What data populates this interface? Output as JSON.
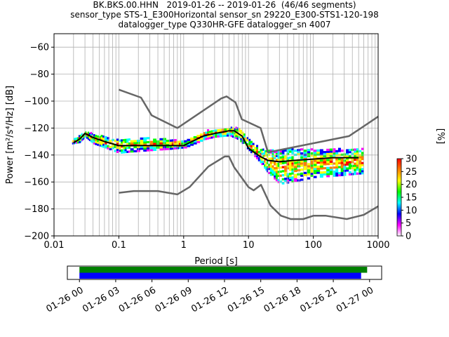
{
  "title_lines": [
    "BK.BKS.00.HHN   2019-01-26 -- 2019-01-26  (46/46 segments)",
    "sensor_type STS-1_E300Horizontal sensor_sn 29220_E300-STS1-120-198",
    "datalogger_type Q330HR-GFE datalogger_sn 4007"
  ],
  "chart_data": [
    {
      "type": "heatmap",
      "xlabel": "Period [s]",
      "ylabel": "Power [m²/s⁴/Hz] [dB]",
      "x_scale": "log",
      "xlim": [
        0.01,
        1000
      ],
      "ylim": [
        -200,
        -50
      ],
      "x_ticks": [
        {
          "value": 0.01,
          "label": "0.01"
        },
        {
          "value": 0.1,
          "label": "0.1"
        },
        {
          "value": 1,
          "label": "1"
        },
        {
          "value": 10,
          "label": "10"
        },
        {
          "value": 100,
          "label": "100"
        },
        {
          "value": 1000,
          "label": "1000"
        }
      ],
      "y_ticks": [
        -60,
        -80,
        -100,
        -120,
        -140,
        -160,
        -180,
        -200
      ],
      "grid": true,
      "colorbar": {
        "label": "[%]",
        "range": [
          0,
          30
        ],
        "ticks": [
          0,
          5,
          10,
          15,
          20,
          25,
          30
        ],
        "colors": [
          "#ffffff",
          "#ff00ff",
          "#0000ff",
          "#00ffff",
          "#00ff00",
          "#ffff00",
          "#ff8000",
          "#ff0000"
        ]
      },
      "series": [
        {
          "role": "new-high-noise-model",
          "color": "#666666",
          "x": [
            0.1,
            0.22,
            0.32,
            0.8,
            3.8,
            4.6,
            6.3,
            7.9,
            15.4,
            20,
            354.8,
            1000
          ],
          "y": [
            -91.5,
            -97.4,
            -110.5,
            -120,
            -98,
            -96.5,
            -101,
            -113.5,
            -120,
            -138,
            -126,
            -111.5
          ]
        },
        {
          "role": "new-low-noise-model",
          "color": "#666666",
          "x": [
            0.1,
            0.17,
            0.4,
            0.8,
            1.24,
            2.4,
            4.3,
            5,
            6,
            10,
            12,
            15.6,
            21.9,
            31.6,
            45,
            70,
            101,
            154,
            328,
            600,
            1000
          ],
          "y": [
            -168,
            -166.7,
            -166.7,
            -169.2,
            -163.7,
            -148.6,
            -141.1,
            -141.1,
            -149,
            -163.8,
            -166.2,
            -162.1,
            -177.5,
            -185,
            -187.5,
            -187.5,
            -185,
            -185,
            -187.5,
            -184.4,
            -178
          ]
        },
        {
          "role": "mode",
          "color": "#000000",
          "x": [
            0.02,
            0.025,
            0.03,
            0.04,
            0.06,
            0.1,
            0.15,
            0.3,
            0.6,
            1,
            2,
            3,
            4,
            5,
            6,
            8,
            10,
            15,
            20,
            30,
            50,
            100,
            200,
            500
          ],
          "y": [
            -131,
            -128,
            -124,
            -127,
            -130,
            -133,
            -133,
            -133,
            -133,
            -133,
            -126,
            -124,
            -123,
            -122,
            -122,
            -126,
            -135,
            -141,
            -144,
            -145,
            -144,
            -143,
            -142,
            -142
          ]
        }
      ],
      "density": [
        {
          "x": 0.019,
          "y0": -132,
          "y1": -129
        },
        {
          "x": 0.025,
          "y0": -131,
          "y1": -126
        },
        {
          "x": 0.03,
          "y0": -127,
          "y1": -123
        },
        {
          "x": 0.04,
          "y0": -132,
          "y1": -125
        },
        {
          "x": 0.06,
          "y0": -135,
          "y1": -127
        },
        {
          "x": 0.1,
          "y0": -139,
          "y1": -129
        },
        {
          "x": 0.15,
          "y0": -138,
          "y1": -128
        },
        {
          "x": 0.3,
          "y0": -137,
          "y1": -128
        },
        {
          "x": 0.6,
          "y0": -136,
          "y1": -129
        },
        {
          "x": 1,
          "y0": -135,
          "y1": -130
        },
        {
          "x": 2,
          "y0": -129,
          "y1": -123
        },
        {
          "x": 3,
          "y0": -127,
          "y1": -121
        },
        {
          "x": 5,
          "y0": -126,
          "y1": -120
        },
        {
          "x": 7,
          "y0": -129,
          "y1": -120
        },
        {
          "x": 10,
          "y0": -137,
          "y1": -129
        },
        {
          "x": 15,
          "y0": -146,
          "y1": -136
        },
        {
          "x": 20,
          "y0": -154,
          "y1": -137
        },
        {
          "x": 30,
          "y0": -162,
          "y1": -137
        },
        {
          "x": 50,
          "y0": -160,
          "y1": -136
        },
        {
          "x": 100,
          "y0": -157,
          "y1": -136
        },
        {
          "x": 200,
          "y0": -156,
          "y1": -136
        },
        {
          "x": 350,
          "y0": -155,
          "y1": -136
        },
        {
          "x": 600,
          "y0": -154,
          "y1": -136
        }
      ]
    },
    {
      "type": "bar",
      "role": "data-coverage",
      "x_ticks": [
        "01-26 00",
        "01-26 03",
        "01-26 06",
        "01-26 09",
        "01-26 12",
        "01-26 15",
        "01-26 18",
        "01-26 21",
        "01-27 00"
      ],
      "x_range_hours": [
        -1,
        25
      ],
      "series": [
        {
          "color": "#008000",
          "start_hour": 0,
          "end_hour": 23.8
        },
        {
          "color": "#0000ff",
          "start_hour": 0,
          "end_hour": 23.3
        }
      ]
    }
  ]
}
